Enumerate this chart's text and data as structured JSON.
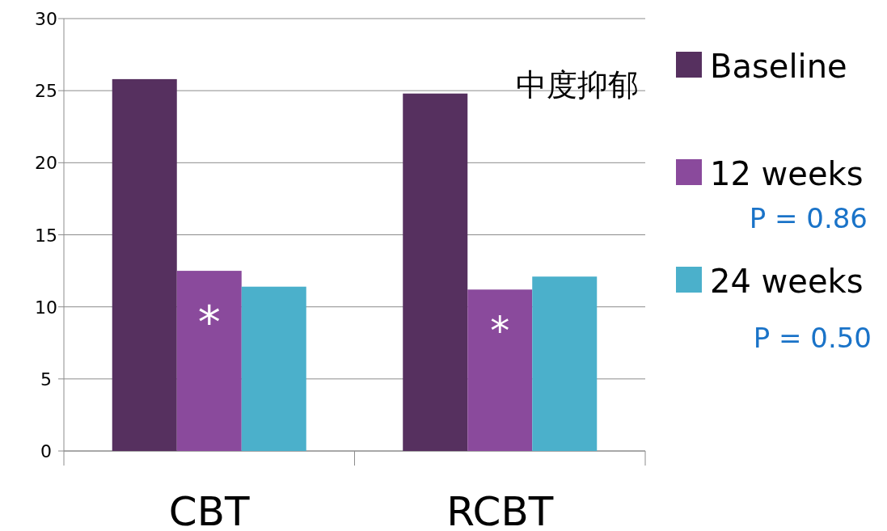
{
  "chart_data": {
    "type": "bar",
    "categories": [
      "CBT",
      "RCBT"
    ],
    "series": [
      {
        "name": "Baseline",
        "color": "#56305f",
        "values": [
          25.8,
          24.8
        ]
      },
      {
        "name": "12 weeks",
        "color": "#8a4a9c",
        "values": [
          12.5,
          11.2
        ]
      },
      {
        "name": "24 weeks",
        "color": "#4bb0cb",
        "values": [
          11.4,
          12.1
        ]
      }
    ],
    "ylim": [
      0,
      30
    ],
    "yticks": [
      0,
      5,
      10,
      15,
      20,
      25,
      30
    ],
    "grid": "y",
    "legend": "right",
    "annotations": [
      "中度抑郁",
      "*",
      "*",
      "P = 0.86",
      "P = 0.50"
    ]
  }
}
